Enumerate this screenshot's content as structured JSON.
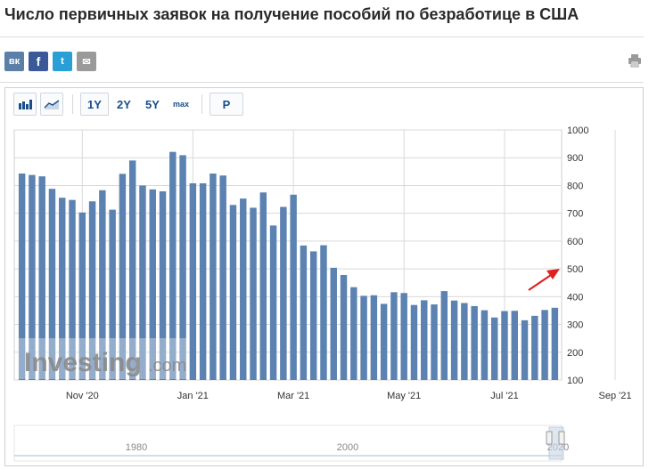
{
  "page": {
    "title": "Число первичных заявок на получение пособий по безработице в США"
  },
  "share": {
    "vk": "вк",
    "facebook": "f",
    "twitter": "t",
    "mail": "✉"
  },
  "toolbar": {
    "ranges": [
      "1Y",
      "2Y",
      "5Y",
      "max"
    ],
    "active_range": "1Y",
    "p_label": "P"
  },
  "watermark": {
    "brand": "Investing",
    "suffix": ".com"
  },
  "colors": {
    "bar": "#5b82b0",
    "bar_stroke": "#4d73a1",
    "grid": "#d9d9d9",
    "arrow": "#e02020",
    "navigator_line": "#a9bcd3"
  },
  "chart_data": {
    "type": "bar",
    "frequency": "weekly",
    "x_tick_labels": [
      "Nov '20",
      "Jan '21",
      "Mar '21",
      "May '21",
      "Jul '21",
      "Sep '21"
    ],
    "x_tick_bar_index": [
      6,
      17,
      27,
      38,
      48,
      59
    ],
    "y_tick_labels": [
      "100",
      "200",
      "300",
      "400",
      "500",
      "600",
      "700",
      "800",
      "900",
      "1000"
    ],
    "ylim": [
      100,
      1000
    ],
    "y_axis_position": "right",
    "grid": true,
    "values": [
      843,
      838,
      833,
      788,
      756,
      748,
      703,
      743,
      783,
      713,
      842,
      890,
      800,
      786,
      779,
      921,
      909,
      808,
      808,
      843,
      836,
      730,
      753,
      720,
      775,
      656,
      723,
      767,
      584,
      563,
      585,
      504,
      478,
      434,
      403,
      405,
      374,
      416,
      413,
      370,
      387,
      372,
      420,
      386,
      377,
      366,
      351,
      325,
      348,
      349,
      315,
      331,
      352,
      360
    ],
    "navigator": {
      "labels": [
        "1980",
        "2000",
        "2020"
      ]
    }
  }
}
